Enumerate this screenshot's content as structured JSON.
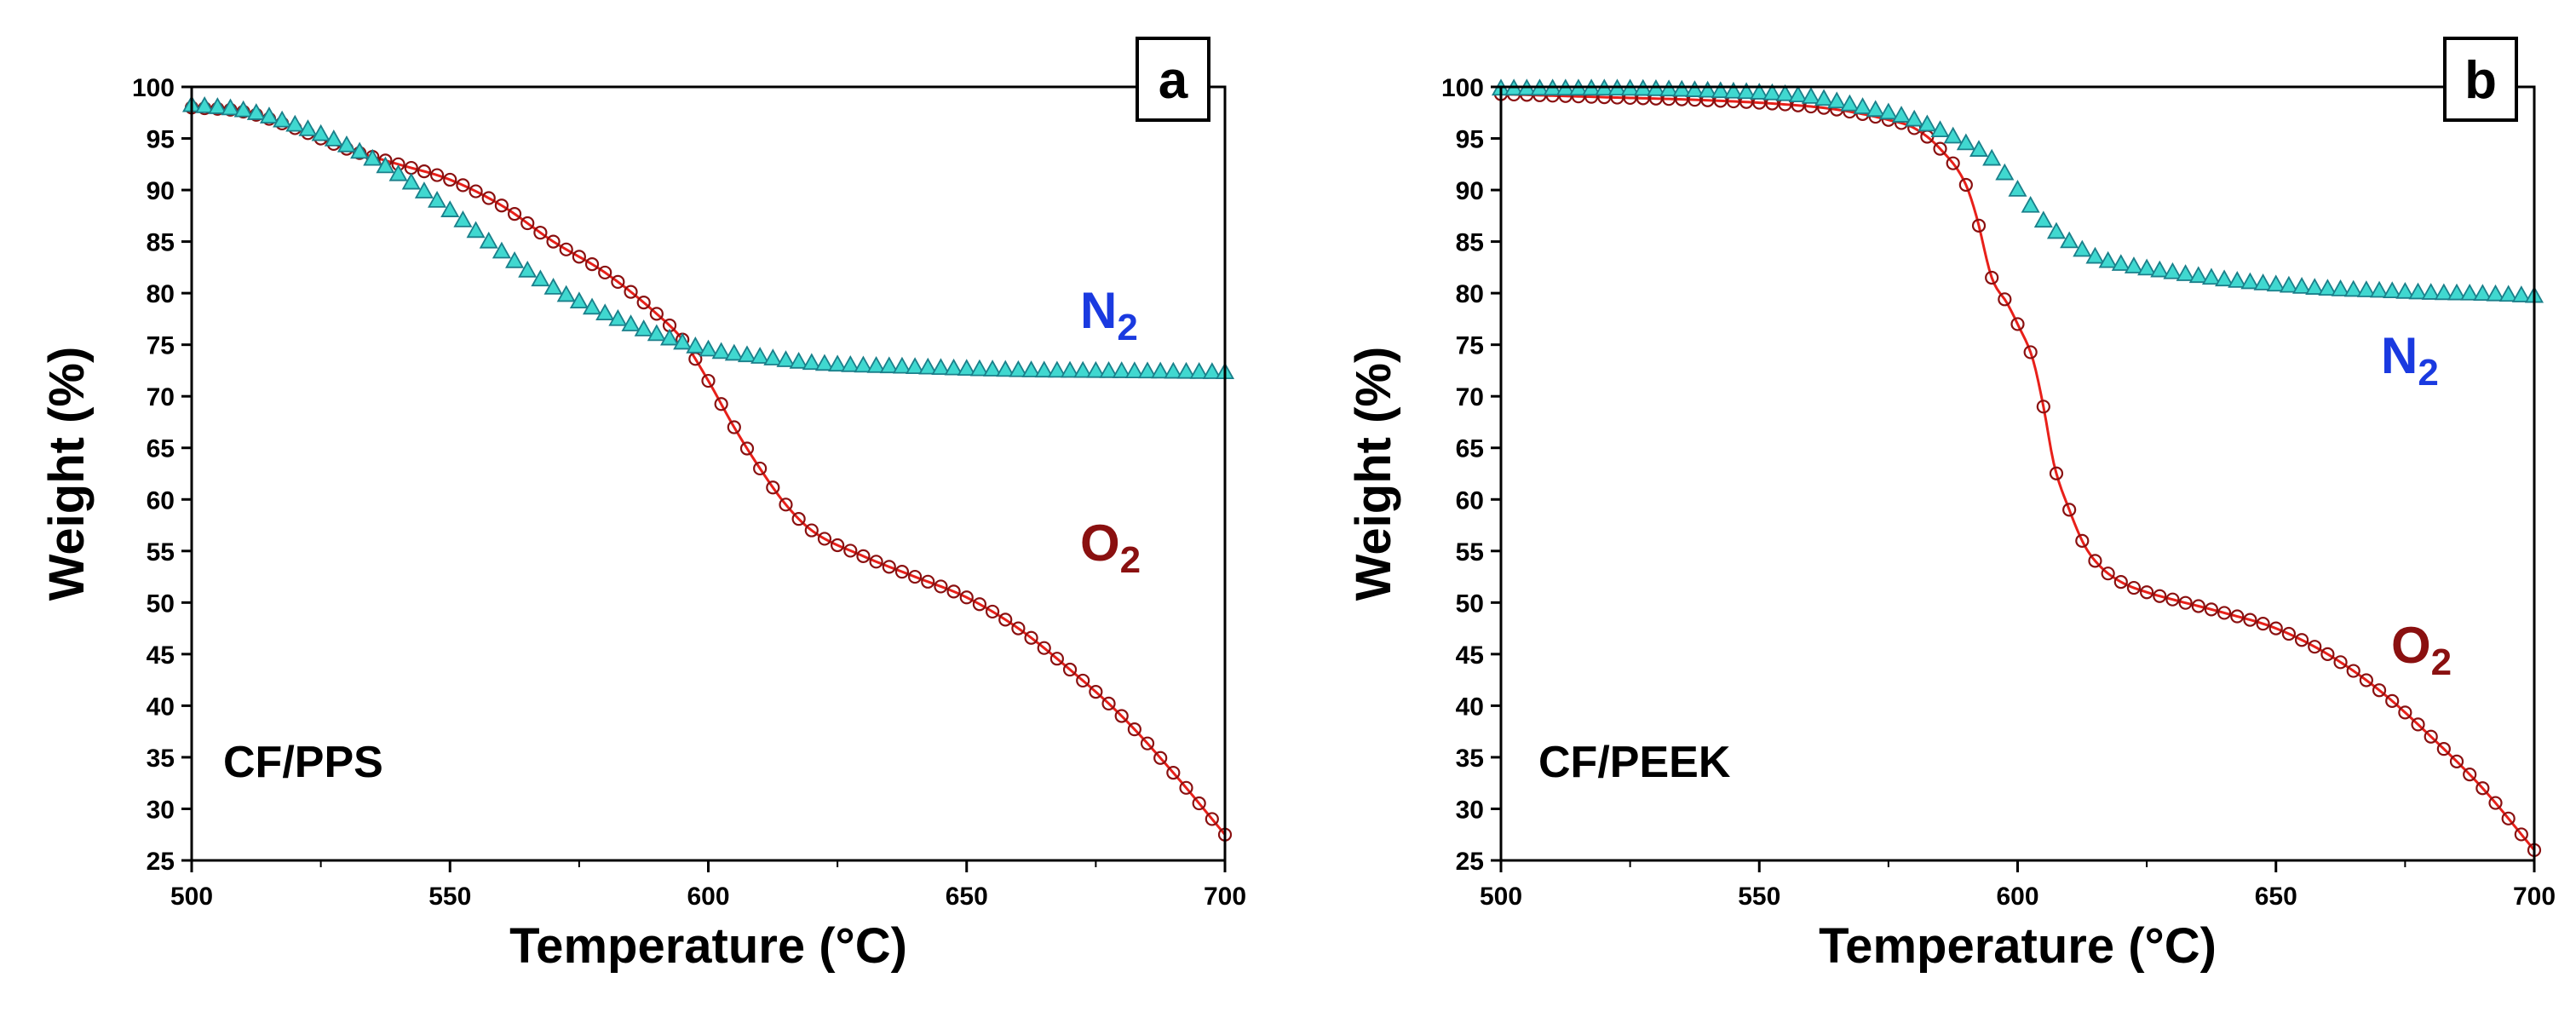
{
  "colors": {
    "o2_line": "#e8201a",
    "o2_marker": "#8a1010",
    "n2_fill": "#40d8d0",
    "n2_stroke": "#1a7f8a",
    "n2_label": "#1a3ae0",
    "o2_label": "#8a1010",
    "axis": "#000000"
  },
  "chart_data": [
    {
      "type": "line",
      "panel_letter": "a",
      "sample_label": "CF/PPS",
      "xlabel": "Temperature (°C)",
      "ylabel": "Weight (%)",
      "xlim": [
        500,
        700
      ],
      "ylim": [
        25,
        100
      ],
      "xticks": [
        "500",
        "550",
        "600",
        "650",
        "700"
      ],
      "yticks": [
        "25",
        "30",
        "35",
        "40",
        "45",
        "50",
        "55",
        "60",
        "65",
        "70",
        "75",
        "80",
        "85",
        "90",
        "95",
        "100"
      ],
      "series": [
        {
          "name": "O2",
          "label_main": "O",
          "label_sub": "2",
          "marker": "circle",
          "points": [
            [
              500,
              98
            ],
            [
              510,
              97.6
            ],
            [
              520,
              96
            ],
            [
              530,
              94
            ],
            [
              540,
              92.5
            ],
            [
              550,
              91
            ],
            [
              560,
              88.5
            ],
            [
              570,
              85
            ],
            [
              580,
              82
            ],
            [
              590,
              78
            ],
            [
              595,
              75.5
            ],
            [
              600,
              71.5
            ],
            [
              605,
              67
            ],
            [
              610,
              63
            ],
            [
              615,
              59.5
            ],
            [
              620,
              57
            ],
            [
              630,
              54.5
            ],
            [
              640,
              52.5
            ],
            [
              650,
              50.5
            ],
            [
              660,
              47.5
            ],
            [
              670,
              43.5
            ],
            [
              680,
              39
            ],
            [
              690,
              33.5
            ],
            [
              700,
              27.5
            ]
          ]
        },
        {
          "name": "N2",
          "label_main": "N",
          "label_sub": "2",
          "marker": "triangle",
          "points": [
            [
              500,
              98.2
            ],
            [
              510,
              97.7
            ],
            [
              520,
              96.3
            ],
            [
              530,
              94.3
            ],
            [
              540,
              91.5
            ],
            [
              550,
              88
            ],
            [
              560,
              84
            ],
            [
              570,
              80.5
            ],
            [
              580,
              78
            ],
            [
              590,
              76
            ],
            [
              600,
              74.5
            ],
            [
              610,
              73.8
            ],
            [
              620,
              73.2
            ],
            [
              640,
              72.8
            ],
            [
              660,
              72.5
            ],
            [
              680,
              72.4
            ],
            [
              700,
              72.3
            ]
          ]
        }
      ]
    },
    {
      "type": "line",
      "panel_letter": "b",
      "sample_label": "CF/PEEK",
      "xlabel": "Temperature (°C)",
      "ylabel": "Weight (%)",
      "xlim": [
        500,
        700
      ],
      "ylim": [
        25,
        100
      ],
      "xticks": [
        "500",
        "550",
        "600",
        "650",
        "700"
      ],
      "yticks": [
        "25",
        "30",
        "35",
        "40",
        "45",
        "50",
        "55",
        "60",
        "65",
        "70",
        "75",
        "80",
        "85",
        "90",
        "95",
        "100"
      ],
      "series": [
        {
          "name": "O2",
          "label_main": "O",
          "label_sub": "2",
          "marker": "circle",
          "points": [
            [
              500,
              99.3
            ],
            [
              520,
              99
            ],
            [
              540,
              98.7
            ],
            [
              555,
              98.3
            ],
            [
              565,
              97.8
            ],
            [
              575,
              96.8
            ],
            [
              580,
              96
            ],
            [
              585,
              94
            ],
            [
              590,
              90.5
            ],
            [
              592,
              87.5
            ],
            [
              595,
              81.5
            ],
            [
              598,
              79
            ],
            [
              600,
              77
            ],
            [
              603,
              73.5
            ],
            [
              605,
              69
            ],
            [
              607,
              63.5
            ],
            [
              610,
              59
            ],
            [
              613,
              55.5
            ],
            [
              616,
              53.5
            ],
            [
              620,
              52
            ],
            [
              625,
              51
            ],
            [
              630,
              50.3
            ],
            [
              640,
              49
            ],
            [
              650,
              47.5
            ],
            [
              660,
              45
            ],
            [
              670,
              41.5
            ],
            [
              680,
              37
            ],
            [
              690,
              32
            ],
            [
              700,
              26
            ]
          ]
        },
        {
          "name": "N2",
          "label_main": "N",
          "label_sub": "2",
          "marker": "triangle",
          "points": [
            [
              500,
              99.8
            ],
            [
              520,
              99.8
            ],
            [
              540,
              99.6
            ],
            [
              560,
              99
            ],
            [
              570,
              98
            ],
            [
              580,
              96.8
            ],
            [
              590,
              94.5
            ],
            [
              595,
              93
            ],
            [
              600,
              90
            ],
            [
              605,
              87
            ],
            [
              610,
              85
            ],
            [
              615,
              83.5
            ],
            [
              620,
              82.8
            ],
            [
              630,
              82
            ],
            [
              640,
              81.3
            ],
            [
              650,
              80.8
            ],
            [
              660,
              80.4
            ],
            [
              670,
              80.2
            ],
            [
              680,
              80
            ],
            [
              690,
              79.9
            ],
            [
              700,
              79.7
            ]
          ]
        }
      ]
    }
  ]
}
